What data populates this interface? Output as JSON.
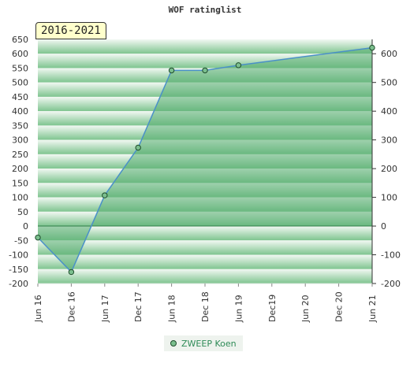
{
  "title": "WOF ratinglist",
  "badge": "2016-2021",
  "colors": {
    "band_dark": "#7ec48f",
    "band_light": "#f2f8f3",
    "fill": "#5aae73",
    "line": "#4a90c8",
    "point_fill": "#7bbf8e",
    "point_stroke": "#1f4d2c",
    "legend_text": "#2e8b57"
  },
  "chart_data": {
    "type": "area",
    "x": [
      "Jun 16",
      "Dec 16",
      "Jun 17",
      "Dec 17",
      "Jun 18",
      "Dec 18",
      "Jun 19",
      "Jun 21"
    ],
    "x_ticks": [
      "Jun 16",
      "Dec 16",
      "Jun 17",
      "Dec 17",
      "Jun 18",
      "Dec 18",
      "Jun 19",
      "Dec19",
      "Jun 20",
      "Dec 20",
      "Jun 21"
    ],
    "series": [
      {
        "name": "ZWEEP Koen",
        "values": [
          -40,
          -160,
          107,
          273,
          542,
          542,
          560,
          621
        ]
      }
    ],
    "y_ticks_left": [
      650,
      600,
      550,
      500,
      450,
      400,
      350,
      300,
      250,
      200,
      150,
      100,
      50,
      0,
      -50,
      -100,
      -150,
      -200
    ],
    "y_ticks_right": [
      600,
      500,
      400,
      300,
      200,
      100,
      0,
      -100,
      -200
    ],
    "ylim": [
      -200,
      650
    ],
    "legend": "bottom-center"
  }
}
